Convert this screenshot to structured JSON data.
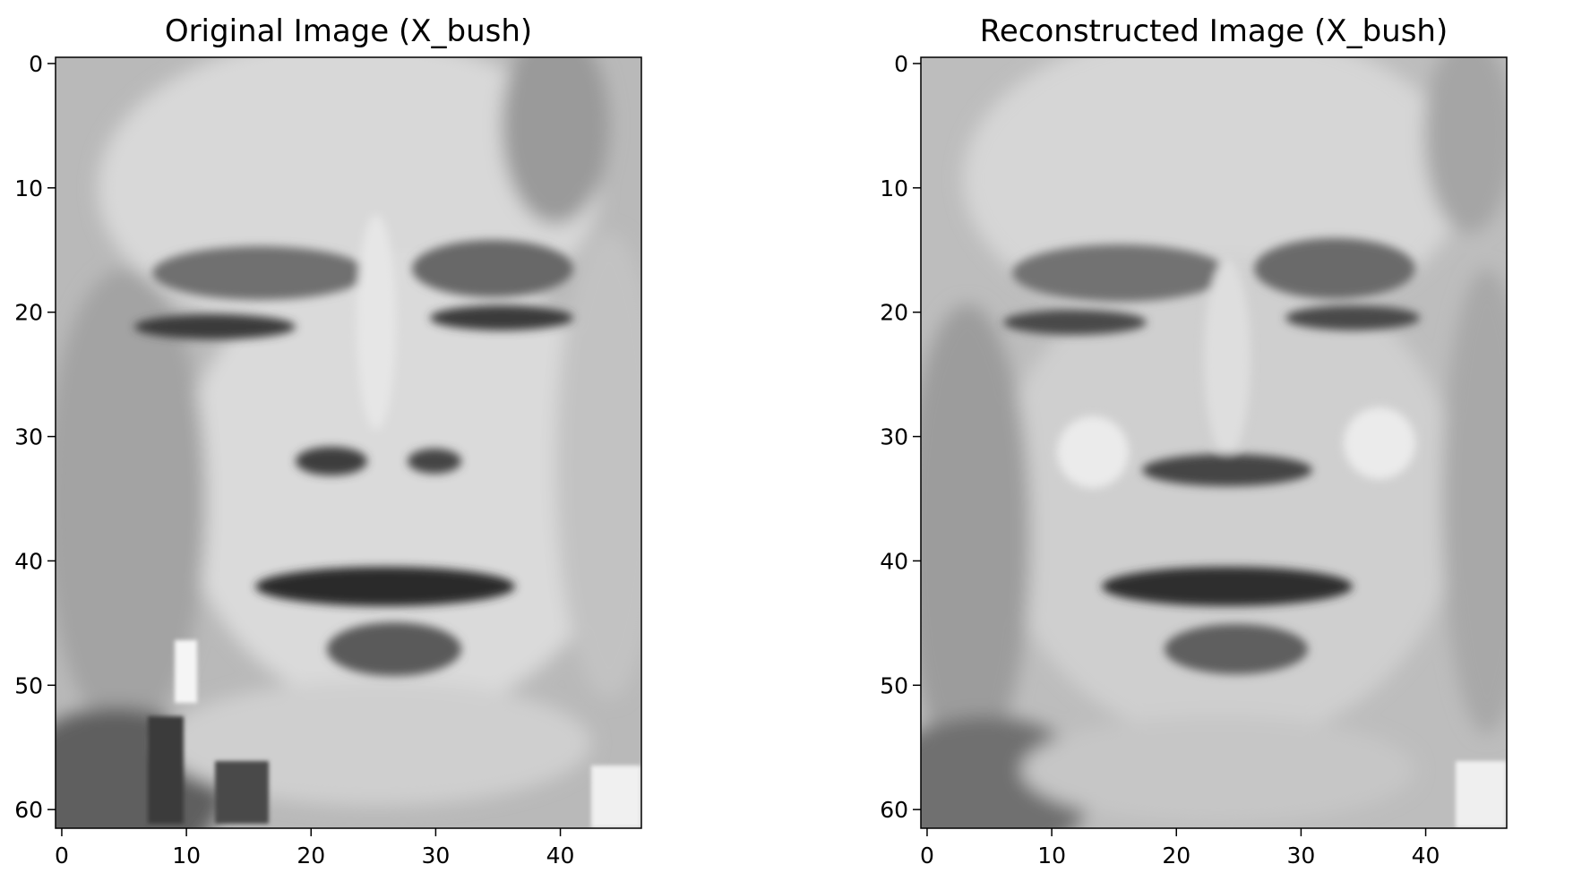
{
  "chart_data": [
    {
      "type": "heatmap",
      "title": "Original Image (X_bush)",
      "colormap": "grayscale",
      "image_shape": [
        62,
        47
      ],
      "xlim": [
        -0.5,
        46.5
      ],
      "ylim": [
        61.5,
        -0.5
      ],
      "x_ticks": [
        0,
        10,
        20,
        30,
        40
      ],
      "y_ticks": [
        0,
        10,
        20,
        30,
        40,
        50,
        60
      ],
      "x_tick_labels": [
        "0",
        "10",
        "20",
        "30",
        "40"
      ],
      "y_tick_labels": [
        "0",
        "10",
        "20",
        "30",
        "40",
        "50",
        "60"
      ],
      "xlabel": "",
      "ylabel": "",
      "grid": false
    },
    {
      "type": "heatmap",
      "title": "Reconstructed Image (X_bush)",
      "colormap": "grayscale",
      "image_shape": [
        62,
        47
      ],
      "xlim": [
        -0.5,
        46.5
      ],
      "ylim": [
        61.5,
        -0.5
      ],
      "x_ticks": [
        0,
        10,
        20,
        30,
        40
      ],
      "y_ticks": [
        0,
        10,
        20,
        30,
        40,
        50,
        60
      ],
      "x_tick_labels": [
        "0",
        "10",
        "20",
        "30",
        "40"
      ],
      "y_tick_labels": [
        "0",
        "10",
        "20",
        "30",
        "40",
        "50",
        "60"
      ],
      "xlabel": "",
      "ylabel": "",
      "grid": false
    }
  ]
}
